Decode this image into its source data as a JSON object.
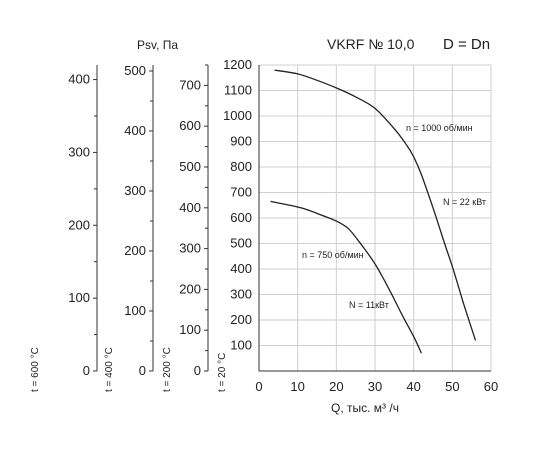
{
  "title": "VKRF № 10,0",
  "diameter_label": "D = Dn",
  "pressure_unit": "Psv, Па",
  "chart_data": {
    "type": "line",
    "title": "VKRF № 10,0",
    "xlabel": "Q, тыс. м³ /ч",
    "ylabel": "Psv, Па",
    "xlim": [
      0,
      60
    ],
    "ylim": [
      0,
      1200
    ],
    "x_ticks": [
      0,
      10,
      20,
      30,
      40,
      50,
      60
    ],
    "y_ticks": [
      100,
      200,
      300,
      400,
      500,
      600,
      700,
      800,
      900,
      1000,
      1100,
      1200
    ],
    "grid": true,
    "series": [
      {
        "name": "n = 1000 об/мин",
        "power": "N = 22 кВт",
        "x": [
          4,
          10,
          15,
          20,
          25,
          30,
          35,
          38,
          40,
          42,
          45,
          48,
          50,
          53,
          56
        ],
        "y": [
          1180,
          1165,
          1140,
          1110,
          1075,
          1030,
          950,
          890,
          840,
          770,
          640,
          500,
          410,
          260,
          120
        ]
      },
      {
        "name": "n = 750 об/мин",
        "power": "N = 11кВт",
        "x": [
          3,
          8,
          12,
          16,
          20,
          23,
          26,
          30,
          34,
          37,
          40,
          42
        ],
        "y": [
          665,
          650,
          635,
          612,
          588,
          560,
          505,
          420,
          310,
          220,
          135,
          70
        ]
      }
    ],
    "extra_pressure_axes": [
      {
        "temperature_label": "t = 600 °C",
        "ticks": [
          0,
          100,
          200,
          300,
          400
        ],
        "max": 420
      },
      {
        "temperature_label": "t = 400 °C",
        "ticks": [
          0,
          100,
          200,
          300,
          400,
          500
        ],
        "max": 510
      },
      {
        "temperature_label": "t = 200 °C",
        "ticks": [
          0,
          100,
          200,
          300,
          400,
          500,
          600,
          700
        ],
        "max": 750
      },
      {
        "temperature_label": "t = 20 °C"
      }
    ]
  }
}
